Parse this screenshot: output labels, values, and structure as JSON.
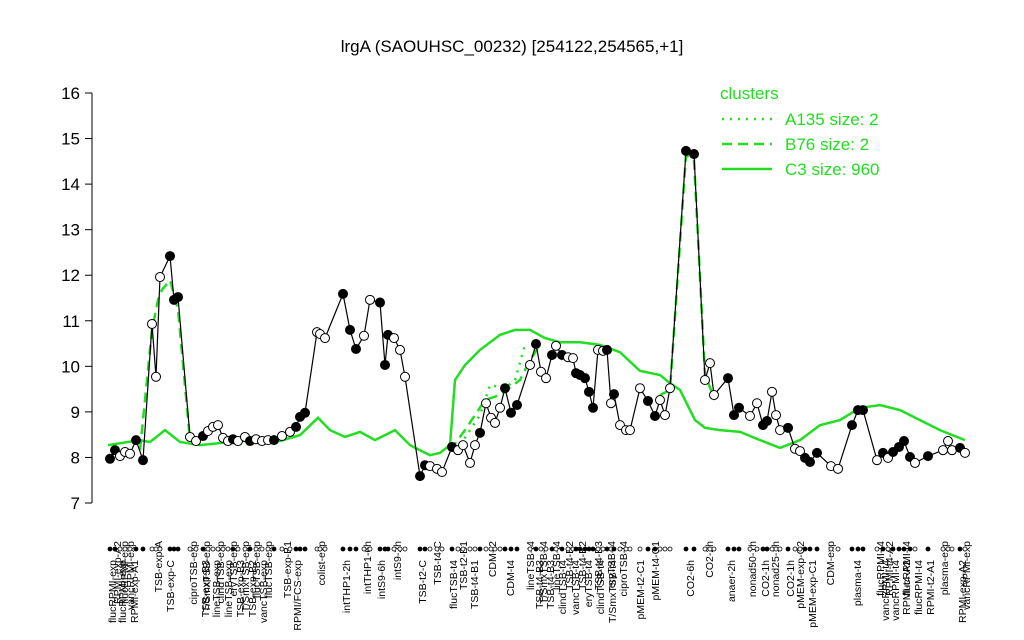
{
  "chart_data": {
    "type": "line",
    "title": "lrgA (SAOUHSC_00232) [254122,254565,+1]",
    "xlim": [
      0,
      172
    ],
    "ylim": [
      7,
      16
    ],
    "yticks": [
      7,
      8,
      9,
      10,
      11,
      12,
      13,
      14,
      15,
      16
    ],
    "legend_title": "clusters",
    "legend_position": "topright",
    "legend_color": "#22dd22",
    "xticks": [
      {
        "value": 0.8,
        "label": "flucRPMI-exp"
      },
      {
        "value": 2.8,
        "label": "flucRPMI-exp"
      },
      {
        "value": 5.2,
        "label": "RPMI-exp-A1"
      },
      {
        "value": 12.4,
        "label": "TSB-exp-C"
      },
      {
        "value": 19.4,
        "label": "TSB-exp-B3"
      },
      {
        "value": 21.6,
        "label": "lineTSB-exp"
      },
      {
        "value": 24,
        "label": "lineTSB-exp"
      },
      {
        "value": 26.4,
        "label": "TSB-exp-B3"
      },
      {
        "value": 28.8,
        "label": "TSB-exp-B2"
      },
      {
        "value": 31,
        "label": "vancTSB-exp"
      },
      {
        "value": 37.8,
        "label": "RPMI/FCS-exp"
      },
      {
        "value": 47.6,
        "label": "intTHP1-2h"
      },
      {
        "value": 54.6,
        "label": "intS9-6h"
      },
      {
        "value": 62.8,
        "label": "TSB-t2-C"
      },
      {
        "value": 69,
        "label": "flucTSB-t4"
      },
      {
        "value": 73.2,
        "label": "TSB-t4-B1"
      },
      {
        "value": 80.4,
        "label": "CDM-t4"
      },
      {
        "value": 86.2,
        "label": "TSB-t4-B3"
      },
      {
        "value": 88.4,
        "label": "TSB-t4-B3"
      },
      {
        "value": 90.8,
        "label": "clindTSB-t4"
      },
      {
        "value": 93.4,
        "label": "vancTSB-t4"
      },
      {
        "value": 96,
        "label": "eryTSB-t4"
      },
      {
        "value": 98.4,
        "label": "clindTSB-t4"
      },
      {
        "value": 100.8,
        "label": "T/SmxTSB-t4"
      },
      {
        "value": 106.4,
        "label": "pMEM-t2-C1"
      },
      {
        "value": 116.4,
        "label": "CO2-6h"
      },
      {
        "value": 124.6,
        "label": "anaer-2h"
      },
      {
        "value": 131.4,
        "label": "CO2-1h"
      },
      {
        "value": 136.4,
        "label": "CO2-1h"
      },
      {
        "value": 140.8,
        "label": "pMEM-exp-C1"
      },
      {
        "value": 149.8,
        "label": "plasma-t4"
      },
      {
        "value": 155.4,
        "label": "vancRPMI-t4"
      },
      {
        "value": 157.4,
        "label": "vancRPMI-t4"
      },
      {
        "value": 159.6,
        "label": "RPMI-t4-A2"
      },
      {
        "value": 162,
        "label": "flucRPMI-t4"
      },
      {
        "value": 164.4,
        "label": "RPMI-t2-A1"
      },
      {
        "value": 170.8,
        "label": "RPMI-exp-A2"
      }
    ],
    "xticks_upper": [
      {
        "value": 1.8,
        "label": "RPMI-exp-A2"
      },
      {
        "value": 3.2,
        "label": "flucRPMI-exp"
      },
      {
        "value": 4.4,
        "label": "vancRPMI-exp"
      },
      {
        "value": 10,
        "label": "TSB-exp-A"
      },
      {
        "value": 17,
        "label": "ciproTSB-exp"
      },
      {
        "value": 19.6,
        "label": "T/SmxTSB-exp"
      },
      {
        "value": 22.4,
        "label": "clindTSB-exp"
      },
      {
        "value": 25,
        "label": "eryTSB-exp"
      },
      {
        "value": 27.4,
        "label": "T/SmxTSB-exp"
      },
      {
        "value": 29.6,
        "label": "flucTSB-exp"
      },
      {
        "value": 32,
        "label": "flucTSB-exp"
      },
      {
        "value": 35.8,
        "label": "TSB-exp-B1"
      },
      {
        "value": 42.6,
        "label": "colist-exp"
      },
      {
        "value": 51.8,
        "label": "intTHP1-6h"
      },
      {
        "value": 57.8,
        "label": "intS9-2h"
      },
      {
        "value": 65.8,
        "label": "TSB-t4-C"
      },
      {
        "value": 71,
        "label": "TSB-t2-B1"
      },
      {
        "value": 76.8,
        "label": "CDM-t2"
      },
      {
        "value": 84.4,
        "label": "lineTSB-t4"
      },
      {
        "value": 87,
        "label": "T/SmxTSB-t4"
      },
      {
        "value": 89.6,
        "label": "lineTSB-t4"
      },
      {
        "value": 92.2,
        "label": "TSB-t4-B2"
      },
      {
        "value": 94.8,
        "label": "TSB-t4-B2"
      },
      {
        "value": 98,
        "label": "TSB-t4-B3"
      },
      {
        "value": 100.6,
        "label": "eryTSB-t4"
      },
      {
        "value": 103,
        "label": "ciproTSB-t4"
      },
      {
        "value": 109.4,
        "label": "pMEM-t4-C1"
      },
      {
        "value": 120.2,
        "label": "CO2-2h"
      },
      {
        "value": 128.8,
        "label": "nonad50-1h"
      },
      {
        "value": 133.4,
        "label": "nonad25-1h"
      },
      {
        "value": 138.4,
        "label": "pMEM-exp-C2"
      },
      {
        "value": 144.4,
        "label": "CDM-exp"
      },
      {
        "value": 154.4,
        "label": "flucRPMI-t4"
      },
      {
        "value": 156.2,
        "label": "RPMI-t4-A2"
      },
      {
        "value": 159.6,
        "label": "flucRPMI-t4"
      },
      {
        "value": 167.2,
        "label": "plasma-exp"
      },
      {
        "value": 171.6,
        "label": "vancRPMI-exp"
      }
    ],
    "series": [
      {
        "color": "#000000",
        "style": "solid",
        "x": [
          0.4,
          1.4,
          2.4,
          3.4,
          4.4,
          5.6,
          7,
          8.8,
          9.6,
          10.4,
          12.4,
          13.2,
          14,
          16.4,
          17.6,
          19,
          20,
          21,
          22,
          23,
          24,
          25,
          26,
          27.4,
          28.4,
          29.6,
          30.8,
          32,
          33.2,
          34.8,
          36.4,
          37.6,
          38.4,
          39.4,
          41.8,
          42.4,
          43.4,
          47,
          48.4,
          49.6,
          51.2,
          52.4,
          54.4,
          55.4,
          56,
          57.2,
          58.4,
          59.4,
          62.4,
          63.4,
          64.4,
          65.8,
          66.8,
          68.8,
          70,
          71,
          72.4,
          73.4,
          74.4,
          75.6,
          76.6,
          77.4,
          78.4,
          79.4,
          80.6,
          81.8,
          84.4,
          85.6,
          86.6,
          87.6,
          88.8,
          89.6,
          90.8,
          92,
          93,
          93.6,
          94.4,
          95.4,
          96.2,
          97,
          98,
          99,
          99.8,
          100.6,
          101.2,
          102.4,
          103.6,
          104.4,
          106.4,
          108,
          109.4,
          110.4,
          111.4,
          112.4,
          115.6,
          117.2,
          119.4,
          120.4,
          121.2,
          124,
          125.2,
          126.2,
          128.4,
          129.8,
          131,
          131.8,
          132.8,
          133.6,
          134.4,
          136,
          137.4,
          138.4,
          139.4,
          140.4,
          141.8,
          144.6,
          146,
          148.8,
          150,
          151,
          153.8,
          155,
          156,
          157,
          158.2,
          159.2,
          160.4,
          161.4,
          164,
          167,
          168,
          168.8,
          170.4,
          171.4
        ],
        "values": [
          7.97,
          8.16,
          8.03,
          8.12,
          8.08,
          8.38,
          7.94,
          10.93,
          9.77,
          11.96,
          12.42,
          11.46,
          11.52,
          8.45,
          8.36,
          8.47,
          8.58,
          8.67,
          8.71,
          8.43,
          8.36,
          8.4,
          8.36,
          8.45,
          8.36,
          8.4,
          8.36,
          8.38,
          8.38,
          8.47,
          8.56,
          8.67,
          8.89,
          8.98,
          10.75,
          10.71,
          10.62,
          11.59,
          10.8,
          10.38,
          10.67,
          11.46,
          11.4,
          10.03,
          10.69,
          10.62,
          10.36,
          9.77,
          7.59,
          7.83,
          7.81,
          7.75,
          7.68,
          8.23,
          8.16,
          8.27,
          7.88,
          8.27,
          8.54,
          9.19,
          8.87,
          8.76,
          9.09,
          9.52,
          8.98,
          9.15,
          10.03,
          10.49,
          9.88,
          9.74,
          10.25,
          10.45,
          10.25,
          10.2,
          10.18,
          9.85,
          9.81,
          9.74,
          9.44,
          9.09,
          10.36,
          10.34,
          10.36,
          9.19,
          9.39,
          8.71,
          8.6,
          8.6,
          9.52,
          9.24,
          8.91,
          9.26,
          8.93,
          9.52,
          14.73,
          14.66,
          9.7,
          10.07,
          9.37,
          9.74,
          8.93,
          9.09,
          8.91,
          9.19,
          8.71,
          8.8,
          9.44,
          8.93,
          8.6,
          8.65,
          8.19,
          8.14,
          7.99,
          7.9,
          8.1,
          7.81,
          7.75,
          8.71,
          9.04,
          9.04,
          7.94,
          8.1,
          7.99,
          8.12,
          8.23,
          8.36,
          8.01,
          7.88,
          8.03,
          8.16,
          8.36,
          8.16,
          8.21,
          8.1
        ],
        "filled": [
          1,
          1,
          0,
          0,
          0,
          1,
          1,
          0,
          0,
          0,
          1,
          1,
          1,
          0,
          0,
          1,
          0,
          0,
          0,
          0,
          0,
          1,
          0,
          0,
          1,
          0,
          0,
          0,
          1,
          0,
          0,
          1,
          1,
          1,
          0,
          0,
          0,
          1,
          1,
          1,
          0,
          0,
          1,
          1,
          1,
          0,
          0,
          0,
          1,
          1,
          0,
          0,
          0,
          1,
          0,
          0,
          0,
          0,
          1,
          0,
          0,
          0,
          0,
          1,
          1,
          1,
          0,
          1,
          0,
          0,
          1,
          0,
          1,
          0,
          0,
          1,
          1,
          1,
          1,
          1,
          0,
          0,
          1,
          0,
          1,
          0,
          0,
          0,
          0,
          1,
          1,
          0,
          0,
          0,
          1,
          1,
          0,
          0,
          0,
          1,
          1,
          1,
          0,
          0,
          1,
          1,
          0,
          0,
          0,
          1,
          0,
          0,
          1,
          1,
          1,
          0,
          0,
          1,
          1,
          1,
          0,
          1,
          0,
          1,
          1,
          1,
          1,
          0,
          1,
          0,
          0,
          0,
          1,
          0
        ]
      },
      {
        "name": "A135 size: 2",
        "color": "#22dd22",
        "style": "dotted",
        "x": [
          70.4,
          74.4,
          76.4,
          79.4,
          81.4,
          83.4
        ],
        "values": [
          8.27,
          8.93,
          9.59,
          9.52,
          9.7,
          10.47
        ]
      },
      {
        "name": "B76 size: 2",
        "color": "#22dd22",
        "style": "dashed",
        "x": [
          6.4,
          8.8,
          10,
          10.8,
          12.4,
          14,
          16.4,
          18.4,
          null,
          68.4,
          71.4,
          75.4,
          78.4,
          82.4,
          84.4,
          86.4,
          null,
          110.4,
          112.4,
          115.6,
          117.2,
          119.4,
          121.4
        ],
        "values": [
          8.16,
          10.8,
          11.46,
          11.68,
          11.89,
          11.24,
          8.38,
          8.27,
          null,
          8.16,
          8.6,
          9.26,
          9.37,
          9.7,
          10.14,
          10.47,
          null,
          9.37,
          9.48,
          14.64,
          14.53,
          9.81,
          9.26
        ]
      },
      {
        "name": "C3 size: 960",
        "color": "#22dd22",
        "style": "solid",
        "x": [
          0,
          6.4,
          8.4,
          11.4,
          14.4,
          18.4,
          26.4,
          34.4,
          38.4,
          42,
          44.4,
          47.4,
          50.4,
          53.4,
          57.4,
          60.4,
          62.4,
          64.4,
          66.4,
          68.4,
          69.4,
          71.4,
          74.4,
          78.4,
          81.4,
          84.4,
          87.4,
          90.4,
          94.4,
          98.4,
          102.4,
          106.4,
          110.4,
          112.4,
          114.4,
          117.4,
          119.4,
          122.4,
          126.4,
          130.4,
          134.4,
          138.4,
          142.4,
          146.4,
          150.4,
          154.4,
          158.4,
          162.4,
          166.4,
          171.4
        ],
        "values": [
          8.27,
          8.38,
          8.34,
          8.6,
          8.34,
          8.27,
          8.36,
          8.36,
          8.49,
          8.87,
          8.6,
          8.45,
          8.56,
          8.38,
          8.6,
          8.27,
          8.16,
          8.05,
          8.1,
          8.27,
          9.7,
          10.03,
          10.36,
          10.69,
          10.8,
          10.8,
          10.62,
          10.53,
          10.53,
          10.47,
          10.31,
          9.9,
          9.81,
          9.63,
          9.48,
          8.82,
          8.65,
          8.6,
          8.56,
          8.38,
          8.21,
          8.38,
          8.71,
          8.82,
          9.09,
          9.15,
          9.04,
          8.82,
          8.6,
          8.38
        ]
      }
    ]
  }
}
